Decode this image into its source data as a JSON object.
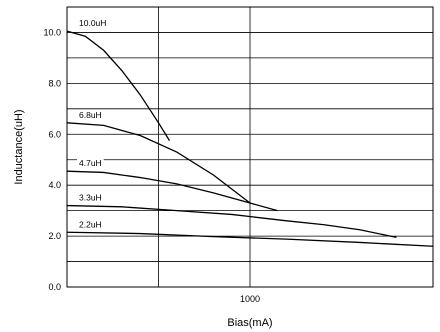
{
  "chart_data": {
    "type": "line",
    "xlabel": "Bias(mA)",
    "ylabel": "Inductance(uH)",
    "xlim": [
      0,
      2000
    ],
    "ylim": [
      0,
      11
    ],
    "grid": true,
    "y_tick_values": [
      0,
      2,
      4,
      6,
      8,
      10
    ],
    "y_tick_labels": [
      "0.0",
      "2.0",
      "4.0",
      "6.0",
      "8.0",
      "10.0"
    ],
    "y_gridlines": [
      1,
      2,
      3,
      4,
      5,
      6,
      7,
      8,
      9,
      10
    ],
    "x_gridlines": [
      1000,
      2000
    ],
    "x_tick_values": [
      1000
    ],
    "x_tick_labels": [
      "1000"
    ],
    "series": [
      {
        "name": "10.0uH",
        "x": [
          0,
          100,
          200,
          300,
          400,
          500,
          560
        ],
        "y": [
          10.05,
          9.85,
          9.3,
          8.5,
          7.55,
          6.45,
          5.75
        ]
      },
      {
        "name": "6.8uH",
        "x": [
          0,
          200,
          400,
          600,
          800,
          1000
        ],
        "y": [
          6.45,
          6.35,
          5.95,
          5.3,
          4.4,
          3.3
        ]
      },
      {
        "name": "4.7uH",
        "x": [
          0,
          200,
          400,
          600,
          800,
          1000,
          1150
        ],
        "y": [
          4.55,
          4.5,
          4.3,
          4.05,
          3.7,
          3.3,
          3.0
        ]
      },
      {
        "name": "3.3uH",
        "x": [
          0,
          300,
          600,
          900,
          1200,
          1400,
          1600,
          1800
        ],
        "y": [
          3.2,
          3.15,
          3.0,
          2.85,
          2.6,
          2.45,
          2.25,
          1.95
        ]
      },
      {
        "name": "2.2uH",
        "x": [
          0,
          400,
          800,
          1200,
          1600,
          2000
        ],
        "y": [
          2.15,
          2.1,
          1.98,
          1.88,
          1.75,
          1.6
        ]
      }
    ]
  }
}
